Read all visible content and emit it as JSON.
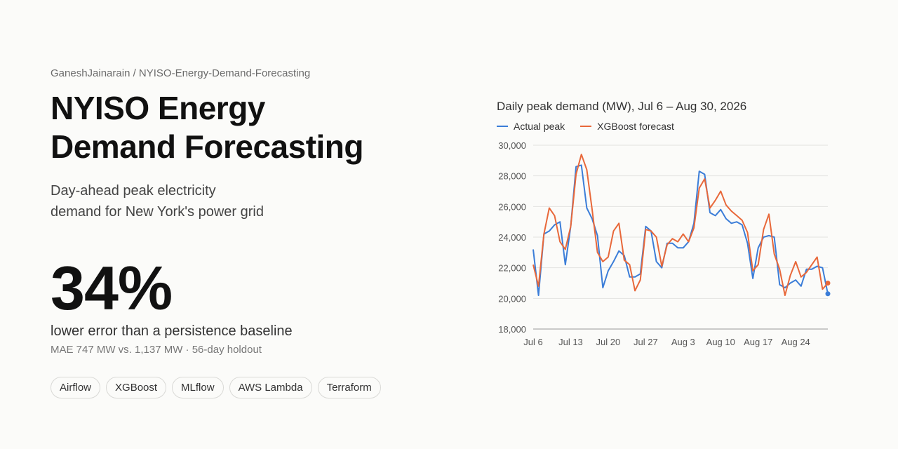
{
  "header": {
    "repo": "GaneshJainarain / NYISO-Energy-Demand-Forecasting",
    "title_line1": "NYISO Energy",
    "title_line2": "Demand Forecasting",
    "subtitle_line1": "Day-ahead peak electricity",
    "subtitle_line2": "demand for New York's power grid"
  },
  "metric": {
    "value": "34%",
    "caption": "lower error than a persistence baseline",
    "detail": "MAE 747 MW vs. 1,137 MW · 56-day holdout"
  },
  "tags": [
    "Airflow",
    "XGBoost",
    "MLflow",
    "AWS Lambda",
    "Terraform"
  ],
  "colors": {
    "actual": "#3b7dd8",
    "forecast": "#e8683a"
  },
  "chart_data": {
    "type": "line",
    "title": "Daily peak demand (MW), Jul 6 – Aug 30, 2026",
    "x": [
      "2026-07-06",
      "2026-07-07",
      "2026-07-08",
      "2026-07-09",
      "2026-07-10",
      "2026-07-11",
      "2026-07-12",
      "2026-07-13",
      "2026-07-14",
      "2026-07-15",
      "2026-07-16",
      "2026-07-17",
      "2026-07-18",
      "2026-07-19",
      "2026-07-20",
      "2026-07-21",
      "2026-07-22",
      "2026-07-23",
      "2026-07-24",
      "2026-07-25",
      "2026-07-26",
      "2026-07-27",
      "2026-07-28",
      "2026-07-29",
      "2026-07-30",
      "2026-07-31",
      "2026-08-01",
      "2026-08-02",
      "2026-08-03",
      "2026-08-04",
      "2026-08-05",
      "2026-08-06",
      "2026-08-07",
      "2026-08-08",
      "2026-08-09",
      "2026-08-10",
      "2026-08-11",
      "2026-08-12",
      "2026-08-13",
      "2026-08-14",
      "2026-08-15",
      "2026-08-16",
      "2026-08-17",
      "2026-08-18",
      "2026-08-19",
      "2026-08-20",
      "2026-08-21",
      "2026-08-22",
      "2026-08-23",
      "2026-08-24",
      "2026-08-25",
      "2026-08-26",
      "2026-08-27",
      "2026-08-28",
      "2026-08-29",
      "2026-08-30"
    ],
    "x_ticks": [
      "Jul 6",
      "Jul 13",
      "Jul 20",
      "Jul 27",
      "Aug 3",
      "Aug 10",
      "Aug 17",
      "Aug 24"
    ],
    "y_ticks": [
      "18,000",
      "20,000",
      "22,000",
      "24,000",
      "26,000",
      "28,000",
      "30,000"
    ],
    "ylim": [
      18000,
      30000
    ],
    "grid": true,
    "legend": "top-left",
    "series": [
      {
        "name": "Actual peak",
        "values": [
          23200,
          20200,
          24200,
          24400,
          24800,
          25000,
          22200,
          24700,
          28600,
          28700,
          25900,
          25200,
          24100,
          20700,
          21800,
          22400,
          23100,
          22800,
          21400,
          21400,
          21600,
          24700,
          24400,
          22400,
          22000,
          23600,
          23600,
          23300,
          23300,
          23700,
          24900,
          28300,
          28100,
          25600,
          25400,
          25800,
          25200,
          24900,
          25000,
          24800,
          23600,
          21300,
          23300,
          24000,
          24100,
          24000,
          20900,
          20700,
          21000,
          21200,
          20800,
          21900,
          21900,
          22100,
          22000,
          20300
        ]
      },
      {
        "name": "XGBoost forecast",
        "values": [
          22200,
          20800,
          24200,
          25900,
          25400,
          23700,
          23200,
          24700,
          28100,
          29400,
          28400,
          25800,
          23000,
          22400,
          22700,
          24400,
          24900,
          22500,
          22200,
          20500,
          21200,
          24500,
          24400,
          24000,
          22100,
          23500,
          23900,
          23700,
          24200,
          23700,
          24600,
          27200,
          27800,
          25900,
          26400,
          27000,
          26100,
          25700,
          25400,
          25100,
          24300,
          21800,
          22200,
          24500,
          25500,
          22900,
          21900,
          20200,
          21500,
          22400,
          21400,
          21700,
          22200,
          22700,
          20600,
          21000
        ]
      }
    ]
  }
}
